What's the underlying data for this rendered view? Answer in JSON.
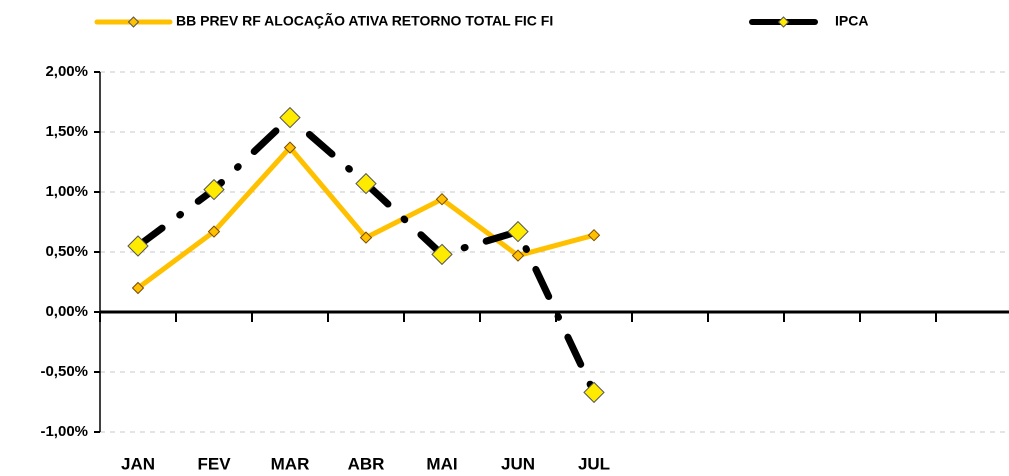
{
  "chart_data": {
    "type": "line",
    "categories": [
      "JAN",
      "FEV",
      "MAR",
      "ABR",
      "MAI",
      "JUN",
      "JUL",
      null,
      null,
      null,
      null,
      null
    ],
    "series": [
      {
        "name": "BB PREV RF ALOCAÇÃO ATIVA RETORNO TOTAL FIC FI",
        "color": "#ffc000",
        "marker_color": "#ffc000",
        "line_style": "solid",
        "values": [
          0.2,
          0.67,
          1.37,
          0.62,
          0.94,
          0.47,
          0.64,
          null,
          null,
          null,
          null,
          null
        ]
      },
      {
        "name": "IPCA",
        "color": "#000000",
        "marker_color": "#ffeb00",
        "line_style": "dash-dot",
        "values": [
          0.55,
          1.02,
          1.62,
          1.07,
          0.48,
          0.67,
          -0.67,
          null,
          null,
          null,
          null,
          null
        ]
      }
    ],
    "ylim": [
      -1,
      2
    ],
    "yticks": [
      {
        "value": -1,
        "label": "-1,00%"
      },
      {
        "value": -0.5,
        "label": "-0,50%"
      },
      {
        "value": 0,
        "label": "0,00%"
      },
      {
        "value": 0.5,
        "label": "0,50%"
      },
      {
        "value": 1,
        "label": "1,00%"
      },
      {
        "value": 1.5,
        "label": "1,50%"
      },
      {
        "value": 2,
        "label": "2,00%"
      }
    ],
    "grid": true,
    "legend": "top"
  }
}
